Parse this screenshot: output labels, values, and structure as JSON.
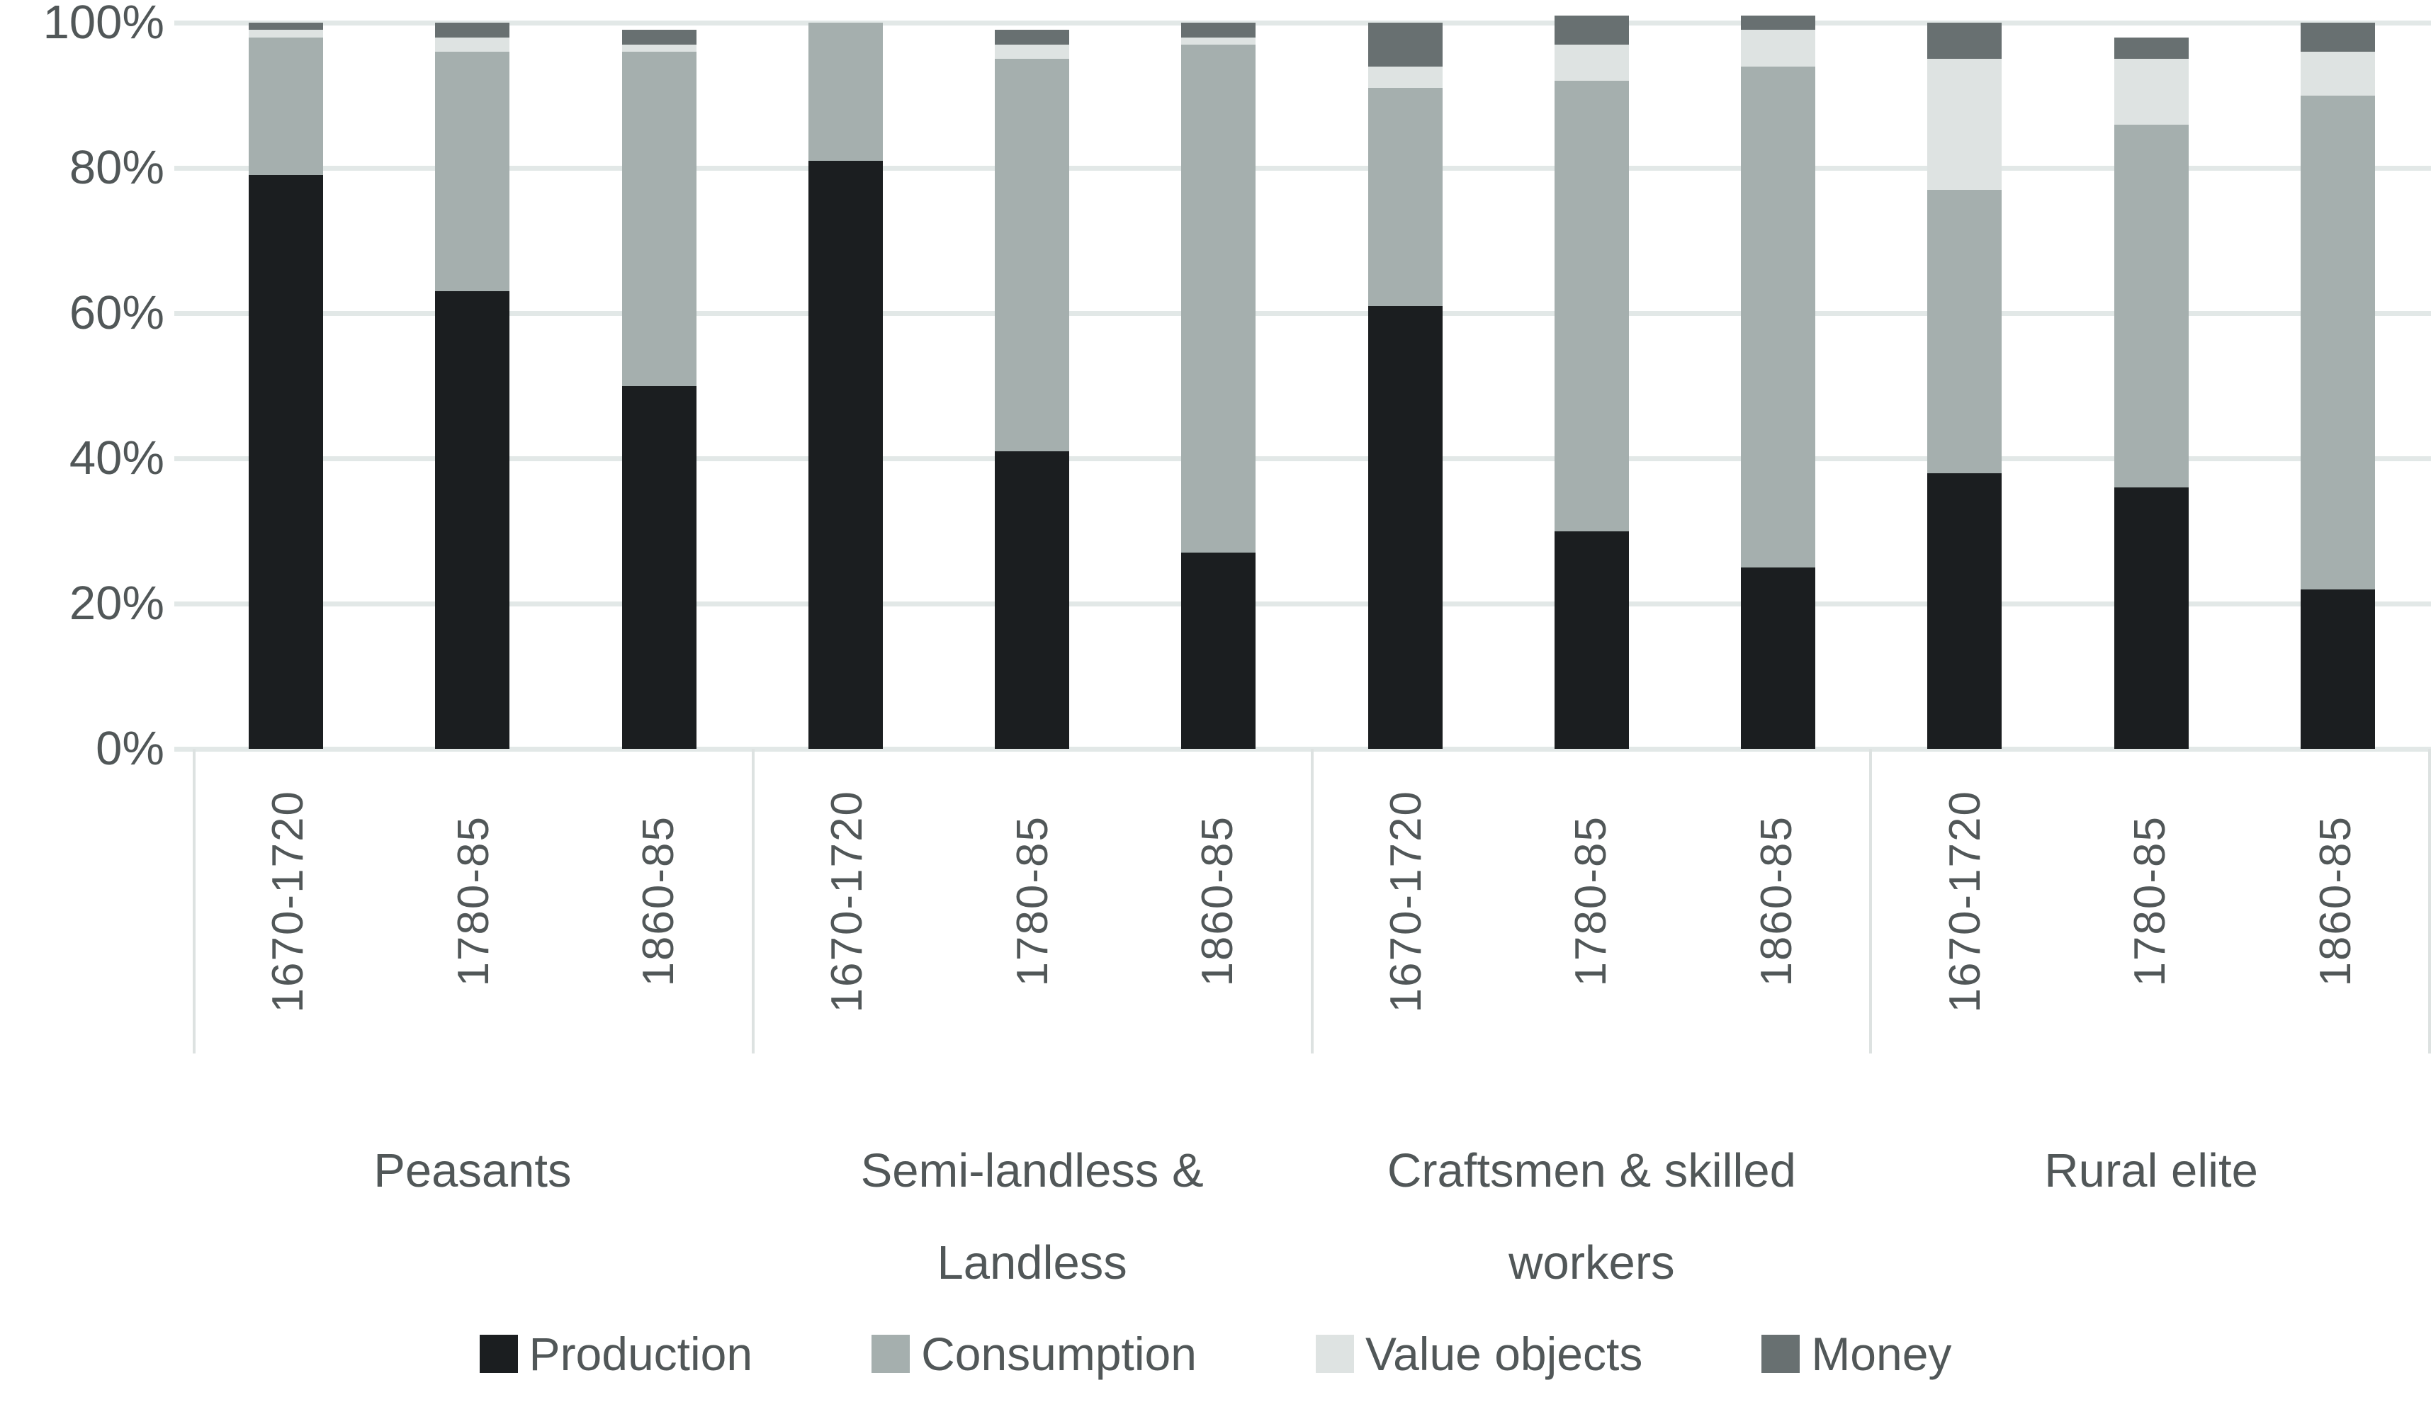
{
  "chart_data": {
    "type": "bar",
    "stacked": true,
    "units": "percent",
    "title": "",
    "xlabel": "",
    "ylabel": "",
    "y_axis": {
      "min": 0,
      "max": 100,
      "ticks": [
        "0%",
        "20%",
        "40%",
        "60%",
        "80%",
        "100%"
      ],
      "grid": true
    },
    "series_order": [
      "production",
      "consumption",
      "value_objects",
      "money"
    ],
    "colors": {
      "production": "#1b1e20",
      "consumption": "#a5afae",
      "value_objects": "#dee3e2",
      "money": "#687071",
      "gridline": "#e2e8e7",
      "divider": "#dde2e1",
      "axis_text": "#515758",
      "background": "#ffffff"
    },
    "legend": [
      {
        "key": "production",
        "label": "Production"
      },
      {
        "key": "consumption",
        "label": "Consumption"
      },
      {
        "key": "value_objects",
        "label": "Value objects"
      },
      {
        "key": "money",
        "label": "Money"
      }
    ],
    "legend_position": "bottom",
    "groups": [
      {
        "label_lines": [
          "Peasants"
        ],
        "bars": [
          {
            "period": "1670-1720",
            "production": 79,
            "consumption": 19,
            "value_objects": 1,
            "money": 1
          },
          {
            "period": "1780-85",
            "production": 63,
            "consumption": 33,
            "value_objects": 2,
            "money": 2
          },
          {
            "period": "1860-85",
            "production": 50,
            "consumption": 46,
            "value_objects": 1,
            "money": 2
          }
        ]
      },
      {
        "label_lines": [
          "Semi-landless &",
          "Landless"
        ],
        "bars": [
          {
            "period": "1670-1720",
            "production": 81,
            "consumption": 19,
            "value_objects": 0,
            "money": 0
          },
          {
            "period": "1780-85",
            "production": 41,
            "consumption": 54,
            "value_objects": 2,
            "money": 2
          },
          {
            "period": "1860-85",
            "production": 27,
            "consumption": 70,
            "value_objects": 1,
            "money": 2
          }
        ]
      },
      {
        "label_lines": [
          "Craftsmen & skilled",
          "workers"
        ],
        "bars": [
          {
            "period": "1670-1720",
            "production": 61,
            "consumption": 30,
            "value_objects": 3,
            "money": 6
          },
          {
            "period": "1780-85",
            "production": 30,
            "consumption": 62,
            "value_objects": 5,
            "money": 4
          },
          {
            "period": "1860-85",
            "production": 25,
            "consumption": 69,
            "value_objects": 5,
            "money": 2
          }
        ]
      },
      {
        "label_lines": [
          "Rural elite"
        ],
        "bars": [
          {
            "period": "1670-1720",
            "production": 38,
            "consumption": 39,
            "value_objects": 18,
            "money": 5
          },
          {
            "period": "1780-85",
            "production": 36,
            "consumption": 50,
            "value_objects": 9,
            "money": 3
          },
          {
            "period": "1860-85",
            "production": 22,
            "consumption": 68,
            "value_objects": 6,
            "money": 4
          }
        ]
      }
    ]
  }
}
